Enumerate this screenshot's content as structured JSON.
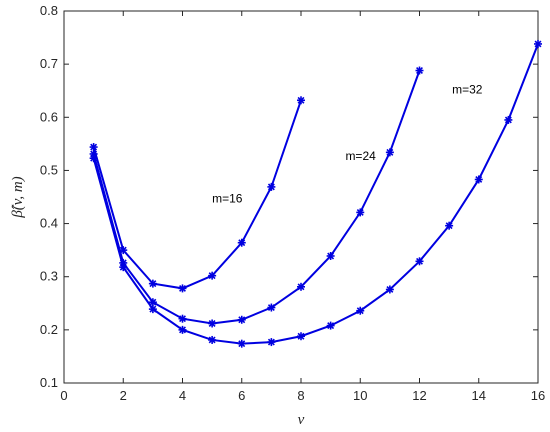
{
  "chart_data": {
    "type": "line",
    "title": "",
    "xlabel": "v",
    "ylabel": "β̂(v, m)",
    "xlim": [
      0,
      16
    ],
    "ylim": [
      0.1,
      0.8
    ],
    "xticks": [
      0,
      2,
      4,
      6,
      8,
      10,
      12,
      14,
      16
    ],
    "yticks": [
      0.1,
      0.2,
      0.3,
      0.4,
      0.5,
      0.6,
      0.7,
      0.8
    ],
    "ytick_labels": [
      "0.1",
      "0.2",
      "0.3",
      "0.4",
      "0.5",
      "0.6",
      "0.7",
      "0.8"
    ],
    "grid": false,
    "legend": "none",
    "color": "#0000e0",
    "marker": "asterisk",
    "series": [
      {
        "x": [
          1,
          2,
          3,
          4,
          5,
          6,
          7,
          8
        ],
        "values": [
          0.544,
          0.35,
          0.287,
          0.278,
          0.302,
          0.364,
          0.469,
          0.632
        ]
      },
      {
        "x": [
          1,
          2,
          3,
          4,
          5,
          6,
          7,
          8,
          9,
          10,
          11,
          12
        ],
        "values": [
          0.531,
          0.326,
          0.252,
          0.221,
          0.212,
          0.219,
          0.242,
          0.281,
          0.339,
          0.421,
          0.534,
          0.688
        ]
      },
      {
        "x": [
          1,
          2,
          3,
          4,
          5,
          6,
          7,
          8,
          9,
          10,
          11,
          12,
          13,
          14,
          15,
          16
        ],
        "values": [
          0.523,
          0.318,
          0.239,
          0.2,
          0.181,
          0.174,
          0.177,
          0.188,
          0.208,
          0.236,
          0.276,
          0.329,
          0.396,
          0.483,
          0.595,
          0.738
        ]
      }
    ],
    "annotations": [
      {
        "text": "m=16",
        "x": 5.0,
        "y": 0.44
      },
      {
        "text": "m=24",
        "x": 9.5,
        "y": 0.52
      },
      {
        "text": "m=32",
        "x": 13.1,
        "y": 0.645
      }
    ]
  }
}
